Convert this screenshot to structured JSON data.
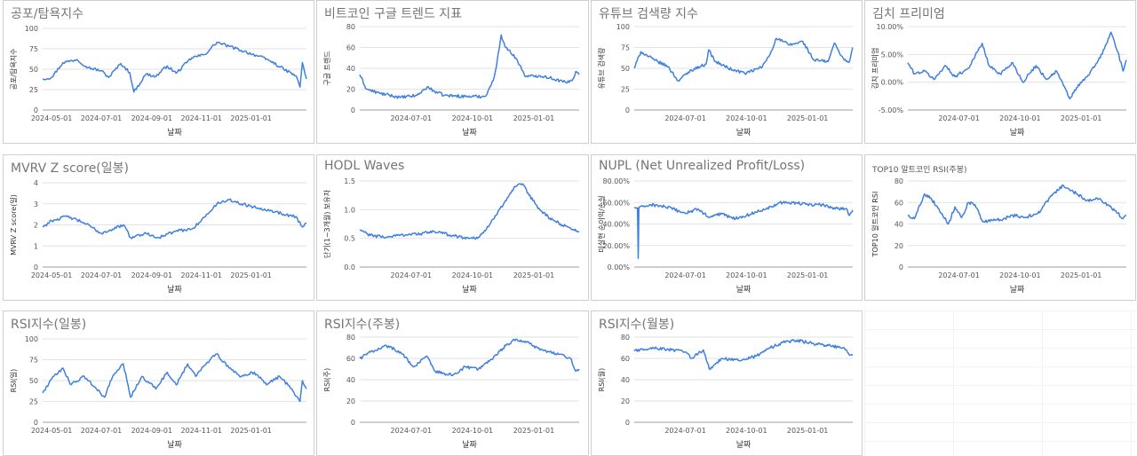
{
  "colors": {
    "line": "#3f7fe0",
    "grid": "#e2e2e2",
    "axis": "#9e9e9e",
    "text": "#555555"
  },
  "chart_data": [
    {
      "id": "fear-greed",
      "type": "line",
      "title": "공포/탐욕지수",
      "xlabel": "날짜",
      "ylabel": "공포/탐욕지수",
      "ylim": [
        0,
        100
      ],
      "yticks": [
        "0",
        "25",
        "50",
        "75",
        "100"
      ],
      "xlim": [
        "2024-04-20",
        "2025-03-10"
      ],
      "xticks": [
        "2024-05-01",
        "2024-07-01",
        "2024-09-01",
        "2024-11-01",
        "2025-01-01"
      ],
      "x": [
        "2024-04-20",
        "2024-05-01",
        "2024-05-15",
        "2024-06-01",
        "2024-06-15",
        "2024-07-01",
        "2024-07-10",
        "2024-07-25",
        "2024-08-05",
        "2024-08-10",
        "2024-08-25",
        "2024-09-06",
        "2024-09-20",
        "2024-10-01",
        "2024-10-20",
        "2024-11-05",
        "2024-11-20",
        "2024-12-05",
        "2024-12-20",
        "2025-01-10",
        "2025-01-25",
        "2025-02-10",
        "2025-02-25",
        "2025-03-02",
        "2025-03-05",
        "2025-03-10"
      ],
      "series": [
        {
          "values": [
            38,
            40,
            58,
            62,
            52,
            48,
            40,
            57,
            46,
            22,
            44,
            41,
            54,
            45,
            64,
            68,
            83,
            78,
            73,
            66,
            60,
            50,
            42,
            28,
            58,
            38
          ]
        }
      ]
    },
    {
      "id": "google-trends",
      "type": "line",
      "title": "비트코인 구글 트렌드 지표",
      "xlabel": "날짜",
      "ylabel": "구글 트렌드",
      "ylim": [
        0,
        80
      ],
      "yticks": [
        "0",
        "20",
        "40",
        "60",
        "80"
      ],
      "xlim": [
        "2024-04-15",
        "2025-03-10"
      ],
      "xticks": [
        "2024-07-01",
        "2024-10-01",
        "2025-01-01"
      ],
      "x": [
        "2024-04-15",
        "2024-04-25",
        "2024-05-15",
        "2024-06-15",
        "2024-07-10",
        "2024-07-25",
        "2024-08-05",
        "2024-08-20",
        "2024-09-20",
        "2024-10-20",
        "2024-11-01",
        "2024-11-06",
        "2024-11-13",
        "2024-11-20",
        "2024-12-05",
        "2024-12-20",
        "2025-01-10",
        "2025-01-25",
        "2025-02-20",
        "2025-03-01",
        "2025-03-05",
        "2025-03-10"
      ],
      "series": [
        {
          "values": [
            34,
            20,
            16,
            12,
            14,
            22,
            18,
            14,
            13,
            13,
            28,
            42,
            72,
            60,
            50,
            32,
            33,
            31,
            26,
            30,
            37,
            34
          ]
        }
      ]
    },
    {
      "id": "youtube-search",
      "type": "line",
      "title": "유튜브 검색량 지수",
      "xlabel": "날짜",
      "ylabel": "유튜브 검색량",
      "ylim": [
        0,
        100
      ],
      "yticks": [
        "0",
        "25",
        "50",
        "75",
        "100"
      ],
      "xlim": [
        "2024-04-15",
        "2025-03-10"
      ],
      "xticks": [
        "2024-07-01",
        "2024-10-01",
        "2025-01-01"
      ],
      "x": [
        "2024-04-15",
        "2024-04-25",
        "2024-05-15",
        "2024-06-05",
        "2024-06-20",
        "2024-07-10",
        "2024-08-01",
        "2024-08-05",
        "2024-08-15",
        "2024-09-10",
        "2024-10-01",
        "2024-10-25",
        "2024-11-06",
        "2024-11-15",
        "2024-12-05",
        "2024-12-25",
        "2025-01-10",
        "2025-02-01",
        "2025-02-10",
        "2025-02-25",
        "2025-03-05",
        "2025-03-10"
      ],
      "series": [
        {
          "values": [
            50,
            70,
            60,
            52,
            35,
            48,
            55,
            72,
            58,
            48,
            44,
            52,
            68,
            86,
            78,
            82,
            60,
            58,
            80,
            60,
            58,
            75
          ]
        }
      ]
    },
    {
      "id": "kimchi-premium",
      "type": "line",
      "title": "김치 프리미엄",
      "xlabel": "날짜",
      "ylabel": "김치 프리미엄",
      "ylim": [
        -5,
        10
      ],
      "yticks": [
        "-5.00%",
        "0.00%",
        "5.00%",
        "10.00%"
      ],
      "xlim": [
        "2024-04-15",
        "2025-03-10"
      ],
      "xticks": [
        "2024-07-01",
        "2024-10-01",
        "2025-01-01"
      ],
      "x": [
        "2024-04-15",
        "2024-04-25",
        "2024-05-10",
        "2024-05-25",
        "2024-06-10",
        "2024-06-25",
        "2024-07-15",
        "2024-08-05",
        "2024-08-15",
        "2024-09-01",
        "2024-09-20",
        "2024-10-05",
        "2024-10-25",
        "2024-11-10",
        "2024-11-25",
        "2024-12-05",
        "2024-12-15",
        "2024-12-25",
        "2025-01-10",
        "2025-01-25",
        "2025-02-05",
        "2025-02-15",
        "2025-02-25",
        "2025-03-05",
        "2025-03-10"
      ],
      "series": [
        {
          "values": [
            3.5,
            1.5,
            2.0,
            0.5,
            3.0,
            1.0,
            2.5,
            7.0,
            3.0,
            1.5,
            3.5,
            0.0,
            3.0,
            0.5,
            2.0,
            -0.5,
            -3.0,
            -1.0,
            1.0,
            3.5,
            6.0,
            9.0,
            5.5,
            2.0,
            4.0
          ]
        }
      ]
    },
    {
      "id": "mvrv-z",
      "type": "line",
      "title": "MVRV Z score(일봉)",
      "xlabel": "날짜",
      "ylabel": "MVRV Z score(일)",
      "ylim": [
        0,
        4
      ],
      "yticks": [
        "0",
        "1",
        "2",
        "3",
        "4"
      ],
      "xlim": [
        "2024-04-20",
        "2025-03-10"
      ],
      "xticks": [
        "2024-05-01",
        "2024-07-01",
        "2024-09-01",
        "2024-11-01",
        "2025-01-01"
      ],
      "x": [
        "2024-04-20",
        "2024-05-01",
        "2024-05-20",
        "2024-06-10",
        "2024-07-01",
        "2024-07-15",
        "2024-07-28",
        "2024-08-06",
        "2024-08-25",
        "2024-09-10",
        "2024-09-30",
        "2024-10-20",
        "2024-11-06",
        "2024-11-20",
        "2024-12-05",
        "2024-12-20",
        "2025-01-10",
        "2025-01-25",
        "2025-02-10",
        "2025-02-25",
        "2025-03-05",
        "2025-03-10"
      ],
      "series": [
        {
          "values": [
            1.9,
            2.2,
            2.4,
            2.1,
            1.6,
            1.8,
            2.0,
            1.4,
            1.6,
            1.4,
            1.7,
            1.8,
            2.4,
            3.0,
            3.2,
            3.0,
            2.8,
            2.7,
            2.5,
            2.4,
            1.9,
            2.1
          ]
        }
      ]
    },
    {
      "id": "hodl-waves",
      "type": "line",
      "title": "HODL Waves",
      "xlabel": "날짜",
      "ylabel": "단기(1~3개월) 보유자",
      "ylim": [
        0,
        1.5
      ],
      "yticks": [
        "0.0",
        "0.5",
        "1.0",
        "1.5"
      ],
      "xlim": [
        "2024-04-15",
        "2025-03-10"
      ],
      "xticks": [
        "2024-07-01",
        "2024-10-01",
        "2025-01-01"
      ],
      "x": [
        "2024-04-15",
        "2024-05-01",
        "2024-05-25",
        "2024-06-15",
        "2024-07-15",
        "2024-08-05",
        "2024-09-01",
        "2024-09-25",
        "2024-10-10",
        "2024-10-25",
        "2024-11-10",
        "2024-11-25",
        "2024-12-05",
        "2024-12-15",
        "2024-12-25",
        "2025-01-10",
        "2025-01-25",
        "2025-02-10",
        "2025-02-25",
        "2025-03-10"
      ],
      "series": [
        {
          "values": [
            0.65,
            0.55,
            0.52,
            0.56,
            0.58,
            0.62,
            0.55,
            0.5,
            0.52,
            0.7,
            1.0,
            1.25,
            1.4,
            1.45,
            1.25,
            1.0,
            0.85,
            0.75,
            0.68,
            0.62
          ]
        }
      ]
    },
    {
      "id": "nupl",
      "type": "line",
      "title": "NUPL (Net Unrealized Profit/Loss)",
      "xlabel": "날짜",
      "ylabel": "미실현 순이익/손실",
      "ylim": [
        0,
        80
      ],
      "yticks": [
        "0.00%",
        "20.00%",
        "40.00%",
        "60.00%",
        "80.00%"
      ],
      "xlim": [
        "2024-04-15",
        "2025-03-10"
      ],
      "xticks": [
        "2024-07-01",
        "2024-10-01",
        "2025-01-01"
      ],
      "x": [
        "2024-04-15",
        "2024-04-20",
        "2024-04-21",
        "2024-04-22",
        "2024-05-10",
        "2024-06-01",
        "2024-07-01",
        "2024-07-20",
        "2024-08-06",
        "2024-08-25",
        "2024-09-10",
        "2024-10-01",
        "2024-10-20",
        "2024-11-06",
        "2024-11-20",
        "2024-12-10",
        "2025-01-01",
        "2025-01-20",
        "2025-02-10",
        "2025-03-01",
        "2025-03-05",
        "2025-03-10"
      ],
      "series": [
        {
          "values": [
            55,
            55,
            8,
            55,
            58,
            56,
            50,
            54,
            46,
            50,
            45,
            48,
            52,
            56,
            60,
            60,
            58,
            58,
            55,
            54,
            48,
            53
          ]
        }
      ]
    },
    {
      "id": "top10-rsi",
      "type": "line",
      "title": "TOP10 알트코인 RSI(주봉)",
      "title_small": true,
      "xlabel": "날짜",
      "ylabel": "TOP10 알트코인 RSI",
      "ylim": [
        0,
        80
      ],
      "yticks": [
        "0",
        "20",
        "40",
        "60",
        "80"
      ],
      "xlim": [
        "2024-04-15",
        "2025-03-10"
      ],
      "xticks": [
        "2024-07-01",
        "2024-10-01",
        "2025-01-01"
      ],
      "x": [
        "2024-04-15",
        "2024-04-25",
        "2024-05-10",
        "2024-05-20",
        "2024-06-05",
        "2024-06-15",
        "2024-06-25",
        "2024-07-05",
        "2024-07-15",
        "2024-07-25",
        "2024-08-06",
        "2024-09-01",
        "2024-09-20",
        "2024-10-10",
        "2024-11-01",
        "2024-11-15",
        "2024-12-05",
        "2024-12-20",
        "2025-01-10",
        "2025-01-25",
        "2025-02-10",
        "2025-02-25",
        "2025-03-05",
        "2025-03-10"
      ],
      "series": [
        {
          "values": [
            48,
            45,
            68,
            64,
            50,
            40,
            56,
            46,
            60,
            58,
            42,
            44,
            48,
            46,
            52,
            65,
            76,
            70,
            62,
            64,
            58,
            50,
            45,
            48
          ]
        }
      ]
    },
    {
      "id": "rsi-daily",
      "type": "line",
      "title": "RSI지수(일봉)",
      "xlabel": "날짜",
      "ylabel": "RSI(일)",
      "ylim": [
        0,
        100
      ],
      "yticks": [
        "0",
        "25",
        "50",
        "75",
        "100"
      ],
      "xlim": [
        "2024-04-20",
        "2025-03-10"
      ],
      "xticks": [
        "2024-05-01",
        "2024-07-01",
        "2024-09-01",
        "2024-11-01",
        "2025-01-01"
      ],
      "x": [
        "2024-04-20",
        "2024-05-01",
        "2024-05-15",
        "2024-05-25",
        "2024-06-10",
        "2024-06-25",
        "2024-07-05",
        "2024-07-15",
        "2024-07-28",
        "2024-08-06",
        "2024-08-20",
        "2024-09-06",
        "2024-09-20",
        "2024-10-01",
        "2024-10-15",
        "2024-10-25",
        "2024-11-08",
        "2024-11-20",
        "2024-12-05",
        "2024-12-20",
        "2025-01-05",
        "2025-01-20",
        "2025-02-05",
        "2025-02-20",
        "2025-03-02",
        "2025-03-05",
        "2025-03-10"
      ],
      "series": [
        {
          "values": [
            35,
            52,
            65,
            45,
            55,
            40,
            30,
            55,
            70,
            30,
            55,
            40,
            60,
            45,
            70,
            55,
            72,
            82,
            65,
            55,
            60,
            45,
            55,
            40,
            25,
            50,
            40
          ]
        }
      ]
    },
    {
      "id": "rsi-weekly",
      "type": "line",
      "title": "RSI지수(주봉)",
      "xlabel": "날짜",
      "ylabel": "RSI(주)",
      "ylim": [
        0,
        80
      ],
      "yticks": [
        "0",
        "20",
        "40",
        "60",
        "80"
      ],
      "xlim": [
        "2024-04-15",
        "2025-03-10"
      ],
      "xticks": [
        "2024-07-01",
        "2024-10-01",
        "2025-01-01"
      ],
      "x": [
        "2024-04-15",
        "2024-05-01",
        "2024-05-25",
        "2024-06-15",
        "2024-07-05",
        "2024-07-25",
        "2024-08-06",
        "2024-09-01",
        "2024-09-20",
        "2024-10-10",
        "2024-11-01",
        "2024-11-20",
        "2024-12-05",
        "2024-12-20",
        "2025-01-10",
        "2025-01-25",
        "2025-02-10",
        "2025-02-25",
        "2025-03-05",
        "2025-03-10"
      ],
      "series": [
        {
          "values": [
            60,
            66,
            72,
            66,
            52,
            62,
            48,
            44,
            52,
            50,
            60,
            72,
            78,
            76,
            68,
            66,
            64,
            60,
            48,
            50
          ]
        }
      ]
    },
    {
      "id": "rsi-monthly",
      "type": "line",
      "title": "RSI지수(월봉)",
      "xlabel": "날짜",
      "ylabel": "RSI(월)",
      "ylim": [
        0,
        80
      ],
      "yticks": [
        "0",
        "20",
        "40",
        "60",
        "80"
      ],
      "xlim": [
        "2024-04-15",
        "2025-03-10"
      ],
      "xticks": [
        "2024-07-01",
        "2024-10-01",
        "2025-01-01"
      ],
      "x": [
        "2024-04-15",
        "2024-05-10",
        "2024-06-10",
        "2024-07-01",
        "2024-07-10",
        "2024-07-28",
        "2024-08-06",
        "2024-08-25",
        "2024-09-20",
        "2024-10-15",
        "2024-11-06",
        "2024-11-25",
        "2024-12-15",
        "2025-01-10",
        "2025-02-01",
        "2025-02-25",
        "2025-03-05",
        "2025-03-10"
      ],
      "series": [
        {
          "values": [
            67,
            70,
            68,
            66,
            60,
            68,
            50,
            60,
            58,
            62,
            70,
            75,
            77,
            74,
            72,
            70,
            63,
            63
          ]
        }
      ]
    }
  ]
}
